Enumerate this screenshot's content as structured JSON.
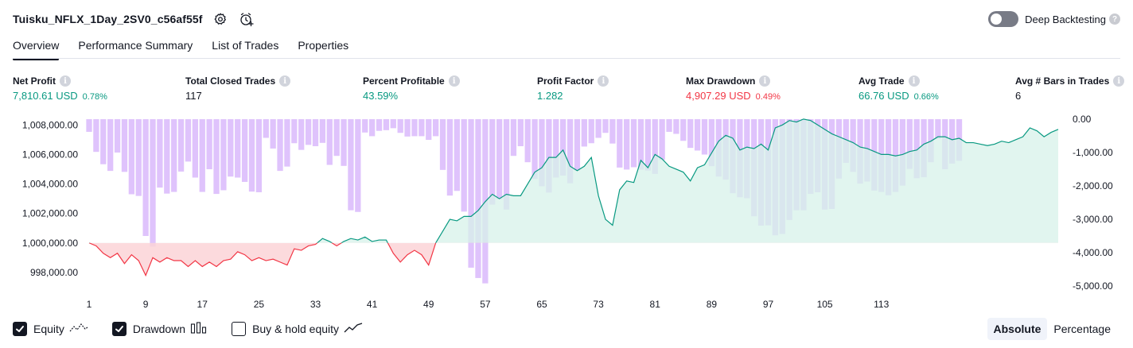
{
  "header": {
    "title": "Tuisku_NFLX_1Day_2SV0_c56af55f",
    "deep_backtesting_label": "Deep Backtesting",
    "deep_backtesting_on": false,
    "help_mark": "?"
  },
  "tabs": [
    {
      "label": "Overview",
      "active": true
    },
    {
      "label": "Performance Summary",
      "active": false
    },
    {
      "label": "List of Trades",
      "active": false
    },
    {
      "label": "Properties",
      "active": false
    }
  ],
  "metrics": {
    "info_mark": "i",
    "net_profit": {
      "label": "Net Profit",
      "value": "7,810.61 USD",
      "pct": "0.78%"
    },
    "total_closed_trades": {
      "label": "Total Closed Trades",
      "value": "117"
    },
    "percent_profitable": {
      "label": "Percent Profitable",
      "value": "43.59%"
    },
    "profit_factor": {
      "label": "Profit Factor",
      "value": "1.282"
    },
    "max_drawdown": {
      "label": "Max Drawdown",
      "value": "4,907.29 USD",
      "pct": "0.49%"
    },
    "avg_trade": {
      "label": "Avg Trade",
      "value": "66.76 USD",
      "pct": "0.66%"
    },
    "avg_bars_in_trades": {
      "label": "Avg # Bars in Trades",
      "value": "6"
    }
  },
  "chart_data": {
    "type": "line",
    "left_axis_ticks": [
      "1,008,000.00",
      "1,006,000.00",
      "1,004,000.00",
      "1,002,000.00",
      "1,000,000.00",
      "998,000.00"
    ],
    "right_axis_ticks": [
      "0.00",
      "-1,000.00",
      "-2,000.00",
      "-3,000.00",
      "-4,000.00",
      "-5,000.00"
    ],
    "x_ticks": [
      "1",
      "9",
      "17",
      "25",
      "33",
      "41",
      "49",
      "57",
      "65",
      "73",
      "81",
      "89",
      "97",
      "105",
      "113"
    ],
    "baseline": 1000000,
    "equity_ylim": [
      996700,
      1008500
    ],
    "drawdown_ylim": [
      -5000,
      0
    ],
    "colors": {
      "equity_up": "#22ab94",
      "equity_down": "#f23645",
      "equity_line_up": "#089981",
      "drawdown_bar": "#d9b8fb",
      "equity_fill_up": "#d7f2ea",
      "equity_fill_down": "#fcd4d7"
    },
    "series": [
      {
        "name": "Equity",
        "values": [
          1000000,
          999800,
          999300,
          999000,
          999300,
          998600,
          999200,
          998800,
          997800,
          999000,
          998700,
          999000,
          998800,
          998800,
          998400,
          998800,
          998400,
          998700,
          998400,
          998800,
          998900,
          999400,
          999200,
          998800,
          999000,
          998800,
          998900,
          998700,
          998500,
          999600,
          999500,
          999800,
          999900,
          1000300,
          1000100,
          999800,
          1000100,
          1000300,
          1000200,
          1000400,
          1000100,
          1000200,
          1000200,
          999300,
          998700,
          999200,
          999500,
          999200,
          998500,
          1000000,
          1000800,
          1001600,
          1001500,
          1001800,
          1001800,
          1002200,
          1002800,
          1003300,
          1003000,
          1003300,
          1003200,
          1003200,
          1004000,
          1004800,
          1005100,
          1005800,
          1005800,
          1006300,
          1005200,
          1004900,
          1005200,
          1005800,
          1003200,
          1001600,
          1001200,
          1003600,
          1004200,
          1004100,
          1005600,
          1005100,
          1006000,
          1005700,
          1005200,
          1005000,
          1004800,
          1004200,
          1005100,
          1005300,
          1006100,
          1006900,
          1007300,
          1007100,
          1006300,
          1006500,
          1006400,
          1006700,
          1006300,
          1007800,
          1008000,
          1008300,
          1008200,
          1008400,
          1008300,
          1008000,
          1007700,
          1007400,
          1007200,
          1007000,
          1006800,
          1006500,
          1006400,
          1006200,
          1006000,
          1006000,
          1005900,
          1006000,
          1006200,
          1006300,
          1006700,
          1006900,
          1007200,
          1007200,
          1007000,
          1007100,
          1006800,
          1006800,
          1006700,
          1006600,
          1006700,
          1006900,
          1006800,
          1007000,
          1007200,
          1007800,
          1007600,
          1007200,
          1007500,
          1007700
        ]
      },
      {
        "name": "Drawdown",
        "values": [
          -380,
          -980,
          -1350,
          -1550,
          -1000,
          -1580,
          -2250,
          -2300,
          -3500,
          -3820,
          -2050,
          -2230,
          -2180,
          -1570,
          -1270,
          -1750,
          -2180,
          -1500,
          -2240,
          -2130,
          -1720,
          -1750,
          -1880,
          -2170,
          -2190,
          -560,
          -880,
          -1550,
          -1420,
          -720,
          -920,
          -770,
          -810,
          -710,
          -1370,
          -1100,
          -1400,
          -2730,
          -2780,
          -400,
          -510,
          -350,
          -330,
          -270,
          -410,
          -520,
          -510,
          -510,
          -620,
          -510,
          -1520,
          -2290,
          -2150,
          -2770,
          -4450,
          -4760,
          -4920,
          -2560,
          -2400,
          -2710,
          -1100,
          -810,
          -1290,
          -1790,
          -2010,
          -2200,
          -1750,
          -1690,
          -1920,
          -1540,
          -820,
          -720,
          -560,
          -410,
          -730,
          -1450,
          -1510,
          -1440,
          -1510,
          -1540,
          -1640,
          -1220,
          -380,
          -440,
          -650,
          -860,
          -940,
          -1060,
          -1410,
          -1720,
          -1810,
          -2220,
          -2340,
          -2370,
          -2910,
          -3190,
          -3180,
          -3480,
          -3440,
          -3020,
          -2730,
          -2730,
          -2240,
          -2190,
          -2710,
          -2690,
          -1780,
          -1310,
          -1580,
          -1930,
          -1870,
          -2140,
          -2180,
          -2280,
          -2180,
          -1990,
          -1490,
          -1770,
          -1740,
          -1290,
          -590,
          -1500,
          -1330,
          -1250
        ]
      }
    ]
  },
  "legend": [
    {
      "label": "Equity",
      "checked": true,
      "icon": "equity-line-icon"
    },
    {
      "label": "Drawdown",
      "checked": true,
      "icon": "drawdown-bars-icon"
    },
    {
      "label": "Buy & hold equity",
      "checked": false,
      "icon": "buy-hold-line-icon"
    }
  ],
  "view_modes": [
    {
      "label": "Absolute",
      "active": true
    },
    {
      "label": "Percentage",
      "active": false
    }
  ]
}
